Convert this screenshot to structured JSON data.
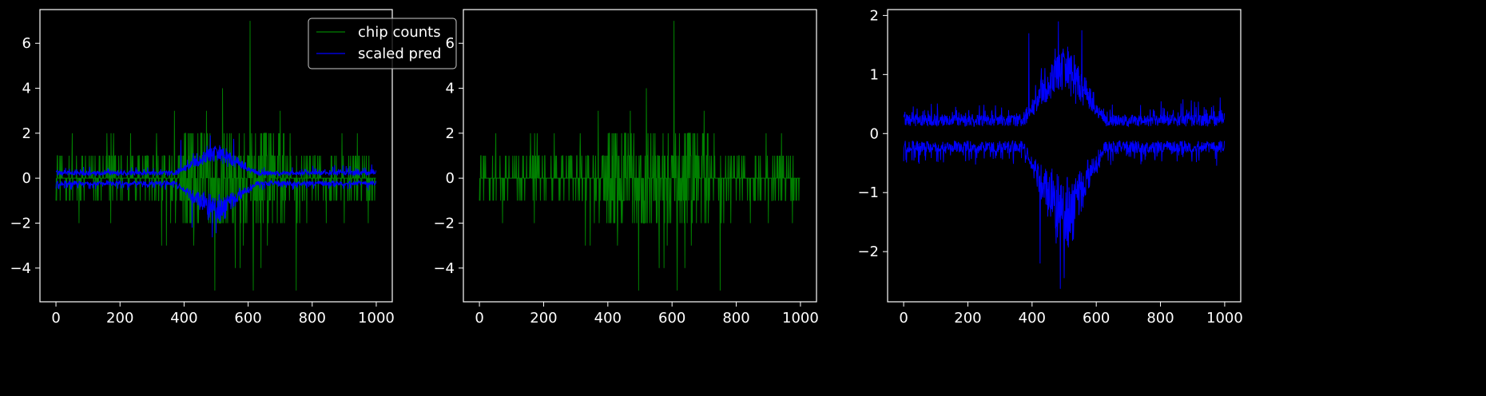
{
  "chart_data": [
    {
      "type": "line",
      "title": "",
      "xlabel": "",
      "ylabel": "",
      "xlim": [
        -50,
        1050
      ],
      "ylim": [
        -5.5,
        7.5
      ],
      "xticks": [
        0,
        200,
        400,
        600,
        800,
        1000
      ],
      "yticks": [
        -4,
        -2,
        0,
        2,
        4,
        6
      ],
      "xtick_labels": [
        "0",
        "200",
        "400",
        "600",
        "800",
        "1000"
      ],
      "ytick_labels": [
        "−4",
        "−2",
        "0",
        "2",
        "4",
        "6"
      ],
      "grid": false,
      "legend": "top-right",
      "n_points": 1000,
      "series": [
        {
          "name": "chip counts",
          "color": "#008000",
          "style": "integer counts, mostly 0 and ±1",
          "notable_points": [
            {
              "x": 606,
              "y": 7
            },
            {
              "x": 520,
              "y": 4
            },
            {
              "x": 496,
              "y": -5
            },
            {
              "x": 616,
              "y": -5
            },
            {
              "x": 750,
              "y": -5
            },
            {
              "x": 370,
              "y": 3
            },
            {
              "x": 470,
              "y": 3
            },
            {
              "x": 700,
              "y": 3
            }
          ]
        },
        {
          "name": "scaled pred",
          "color": "#0000ff",
          "style": "two noisy bands (positive and negative), widened around x=380–620",
          "upper_band": {
            "baseline": 0.25,
            "peak": 1.9,
            "peak_region": [
              380,
              620
            ]
          },
          "lower_band": {
            "baseline": -0.25,
            "trough": -2.6,
            "trough_region": [
              380,
              620
            ]
          }
        }
      ]
    },
    {
      "type": "line",
      "title": "",
      "xlabel": "",
      "ylabel": "",
      "xlim": [
        -50,
        1050
      ],
      "ylim": [
        -5.5,
        7.5
      ],
      "xticks": [
        0,
        200,
        400,
        600,
        800,
        1000
      ],
      "yticks": [
        -4,
        -2,
        0,
        2,
        4,
        6
      ],
      "xtick_labels": [
        "0",
        "200",
        "400",
        "600",
        "800",
        "1000"
      ],
      "ytick_labels": [
        "−4",
        "−2",
        "0",
        "2",
        "4",
        "6"
      ],
      "grid": false,
      "n_points": 1000,
      "series": [
        {
          "color": "#008000",
          "style": "same integer counts as panel 1"
        }
      ]
    },
    {
      "type": "line",
      "title": "",
      "xlabel": "",
      "ylabel": "",
      "xlim": [
        -50,
        1050
      ],
      "ylim": [
        -2.85,
        2.1
      ],
      "xticks": [
        0,
        200,
        400,
        600,
        800,
        1000
      ],
      "yticks": [
        -2,
        -1,
        0,
        1,
        2
      ],
      "xtick_labels": [
        "0",
        "200",
        "400",
        "600",
        "800",
        "1000"
      ],
      "ytick_labels": [
        "−2",
        "−1",
        "0",
        "1",
        "2"
      ],
      "grid": false,
      "n_points": 1000,
      "series": [
        {
          "color": "#0000ff",
          "style": "same two noisy prediction bands as panel 1",
          "upper_band": {
            "baseline": 0.25,
            "peak": 1.9,
            "peak_region": [
              380,
              620
            ]
          },
          "lower_band": {
            "baseline": -0.25,
            "trough": -2.6,
            "trough_region": [
              380,
              620
            ]
          }
        }
      ]
    }
  ]
}
